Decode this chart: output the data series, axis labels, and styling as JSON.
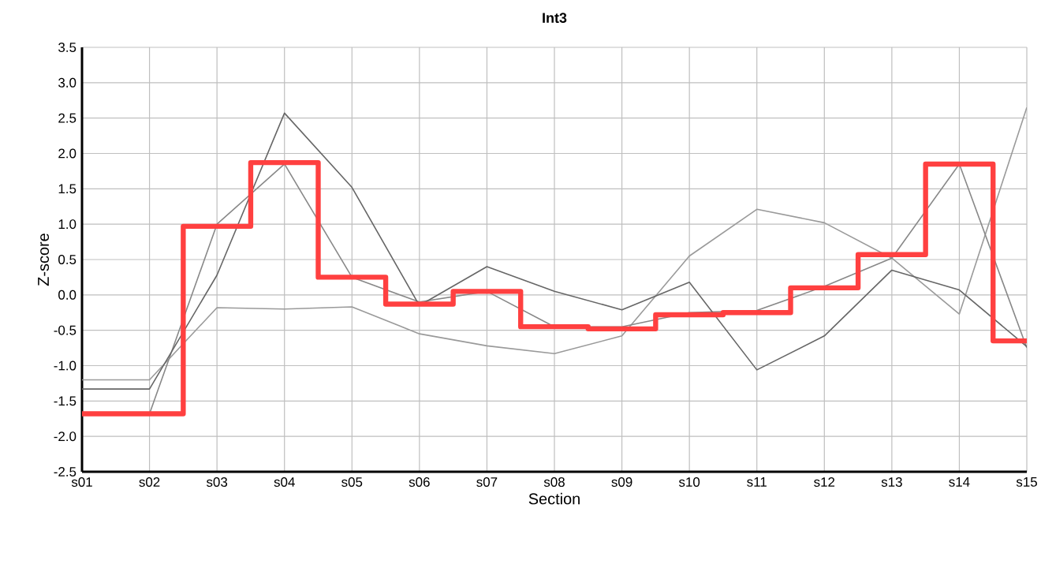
{
  "chart_data": {
    "type": "line",
    "title": "Int3",
    "xlabel": "Section",
    "ylabel": "Z-score",
    "categories": [
      "s01",
      "s02",
      "s03",
      "s04",
      "s05",
      "s06",
      "s07",
      "s08",
      "s09",
      "s10",
      "s11",
      "s12",
      "s13",
      "s14",
      "s15"
    ],
    "ylim": [
      -2.5,
      3.5
    ],
    "yticks": [
      {
        "value": -2.5,
        "label": "-2.5"
      },
      {
        "value": -2,
        "label": "-2.0"
      },
      {
        "value": -1.5,
        "label": "-1.5"
      },
      {
        "value": -1,
        "label": "-1.0"
      },
      {
        "value": -0.5,
        "label": "-0.5"
      },
      {
        "value": 0,
        "label": "0.0"
      },
      {
        "value": 0.5,
        "label": "0.5"
      },
      {
        "value": 1,
        "label": "1.0"
      },
      {
        "value": 1.5,
        "label": "1.5"
      },
      {
        "value": 2,
        "label": "2.0"
      },
      {
        "value": 2.5,
        "label": "2.5"
      },
      {
        "value": 3,
        "label": "3.0"
      },
      {
        "value": 3.5,
        "label": "3.5"
      }
    ],
    "grid": true,
    "marker": "none",
    "series": [
      {
        "color": "#9a9a9a",
        "values": [
          -1.2,
          -1.2,
          -0.18,
          -0.2,
          -0.17,
          -0.55,
          -0.72,
          -0.83,
          -0.58,
          0.55,
          1.21,
          1.02,
          0.52,
          -0.27,
          2.65
        ]
      },
      {
        "color": "#888888",
        "values": [
          -1.68,
          -1.68,
          1.0,
          1.85,
          0.25,
          -0.1,
          0.05,
          -0.45,
          -0.45,
          -0.25,
          -0.22,
          0.12,
          0.52,
          1.85,
          -0.75
        ]
      },
      {
        "color": "#666666",
        "values": [
          -1.33,
          -1.33,
          0.28,
          2.57,
          1.52,
          -0.15,
          0.4,
          0.05,
          -0.21,
          0.18,
          -1.06,
          -0.58,
          0.35,
          0.07,
          -0.73
        ]
      },
      {
        "type": "step",
        "color": "#ff4040",
        "values": [
          -1.68,
          -1.68,
          0.97,
          1.87,
          0.25,
          -0.13,
          0.05,
          -0.45,
          -0.48,
          -0.28,
          -0.25,
          0.1,
          0.57,
          1.85,
          -0.65
        ]
      }
    ]
  }
}
